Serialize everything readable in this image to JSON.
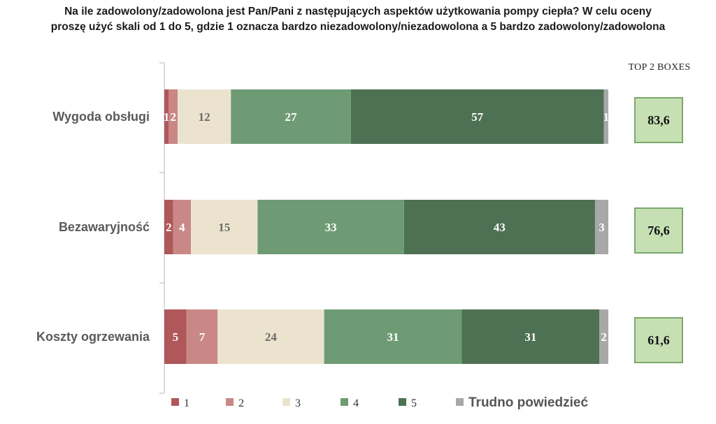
{
  "title": {
    "line1": "Na ile zadowolony/zadowolona jest Pan/Pani z następujących aspektów użytkowania pompy ciepła? W celu oceny",
    "line2": "proszę użyć skali od 1 do 5, gdzie 1 oznacza bardzo niezadowolony/niezadowolona a 5 bardzo zadowolony/zadowolona"
  },
  "chart_data": {
    "type": "bar",
    "stacked": true,
    "orientation": "horizontal",
    "categories": [
      "Wygoda obsługi",
      "Bezawaryjność",
      "Koszty ogrzewania"
    ],
    "series": [
      {
        "name": "1",
        "color": "#b0575a",
        "label_color": "#ffffff",
        "values": [
          1,
          2,
          5
        ],
        "labels": [
          "1",
          "2",
          "5"
        ]
      },
      {
        "name": "2",
        "color": "#c98886",
        "label_color": "#ffffff",
        "values": [
          2,
          4,
          7
        ],
        "labels": [
          "2",
          "4",
          "7"
        ]
      },
      {
        "name": "3",
        "color": "#ebe3cd",
        "label_color": "#6b6b6b",
        "values": [
          12,
          15,
          24
        ],
        "labels": [
          "12",
          "15",
          "24"
        ]
      },
      {
        "name": "4",
        "color": "#6f9b74",
        "label_color": "#ffffff",
        "values": [
          27,
          33,
          31
        ],
        "labels": [
          "27",
          "33",
          "31"
        ]
      },
      {
        "name": "5",
        "color": "#4e7053",
        "label_color": "#ffffff",
        "values": [
          57,
          43,
          31
        ],
        "labels": [
          "57",
          "43",
          "31"
        ]
      },
      {
        "name": "Trudno powiedzieć",
        "color": "#a8a8a8",
        "label_color": "#ffffff",
        "values": [
          1,
          3,
          2
        ],
        "labels": [
          "1",
          "3",
          "2"
        ]
      }
    ],
    "top2": {
      "header": "TOP 2 BOXES",
      "values": [
        "83,6",
        "76,6",
        "61,6"
      ],
      "box_fill": "#c6e0b4",
      "box_border": "#7aa86a"
    },
    "legend_position": "bottom",
    "grid": false
  }
}
